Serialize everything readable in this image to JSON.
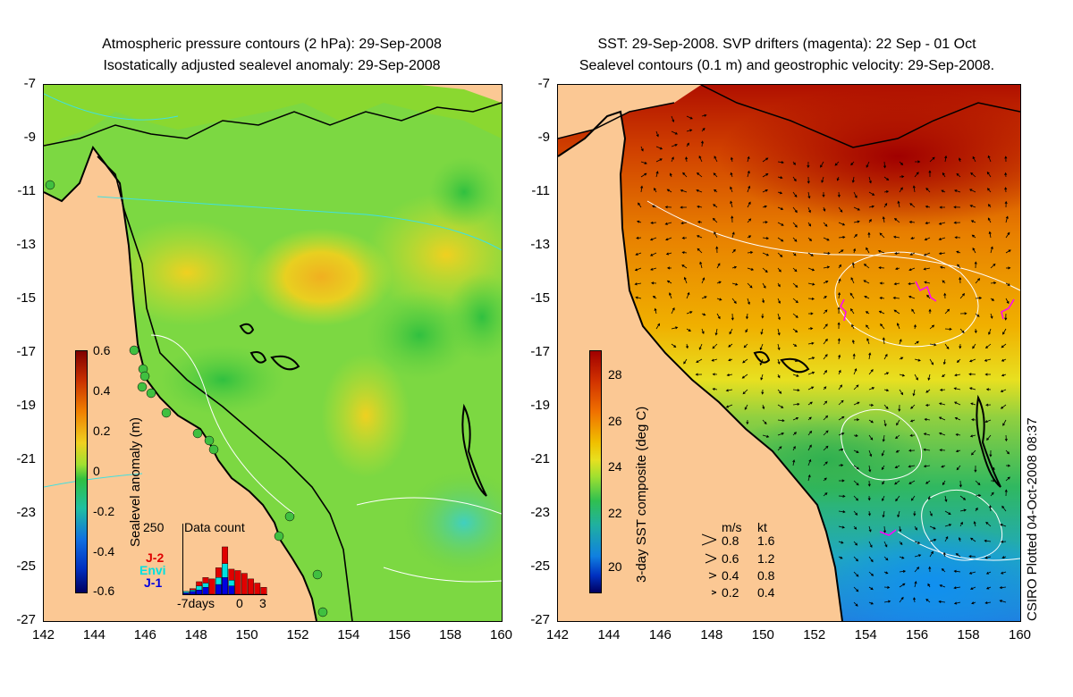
{
  "left_map": {
    "title_line1": "Atmospheric pressure contours (2 hPa): 29-Sep-2008",
    "title_line2": "Isostatically adjusted sealevel anomaly: 29-Sep-2008",
    "colorbar": {
      "label": "Sealevel anomaly (m)",
      "ticks": [
        "0.6",
        "0.4",
        "0.2",
        "0",
        "-0.2",
        "-0.4",
        "-0.6"
      ],
      "range": [
        -0.6,
        0.6
      ]
    },
    "data_count_inset": {
      "title": "Data count",
      "y_max_label": "250",
      "x_labels": [
        "-7days",
        "0",
        "3"
      ],
      "legend": [
        {
          "name": "J-2",
          "color": "#e00000"
        },
        {
          "name": "Envi",
          "color": "#00e0e0"
        },
        {
          "name": "J-1",
          "color": "#0000e0"
        }
      ],
      "bars_j2": [
        10,
        20,
        45,
        60,
        55,
        95,
        170,
        90,
        85,
        75,
        55,
        40,
        25
      ],
      "bars_envi": [
        10,
        15,
        30,
        40,
        0,
        60,
        110,
        50,
        0,
        0,
        0,
        0,
        0
      ],
      "bars_j1": [
        5,
        10,
        15,
        25,
        0,
        35,
        60,
        30,
        0,
        0,
        0,
        0,
        0
      ]
    }
  },
  "right_map": {
    "title_line1": "SST: 29-Sep-2008. SVP drifters (magenta): 22 Sep - 01 Oct",
    "title_line2": "Sealevel contours (0.1 m) and geostrophic velocity: 29-Sep-2008.",
    "colorbar": {
      "label": "3-day SST composite (deg C)",
      "ticks": [
        "28",
        "26",
        "24",
        "22",
        "20"
      ],
      "range": [
        19,
        29.5
      ]
    },
    "velocity_legend": {
      "header_ms": "m/s",
      "header_kt": "kt",
      "rows": [
        {
          "ms": "0.8",
          "kt": "1.6"
        },
        {
          "ms": "0.6",
          "kt": "1.2"
        },
        {
          "ms": "0.4",
          "kt": "0.8"
        },
        {
          "ms": "0.2",
          "kt": "0.4"
        }
      ]
    }
  },
  "axes": {
    "lon_ticks": [
      "142",
      "144",
      "146",
      "148",
      "150",
      "152",
      "154",
      "156",
      "158",
      "160"
    ],
    "lat_ticks": [
      "-7",
      "-9",
      "-11",
      "-13",
      "-15",
      "-17",
      "-19",
      "-21",
      "-23",
      "-25",
      "-27"
    ],
    "lon_range": [
      142,
      160
    ],
    "lat_range": [
      -27,
      -7
    ]
  },
  "credit": "CSIRO Plotted 04-Oct-2008 08:37",
  "colors": {
    "land": "#fbc894",
    "coast": "#000000",
    "drifters": "#ff00ff",
    "contours": "#ffffff",
    "pressure_contours": "#40e0e0"
  }
}
